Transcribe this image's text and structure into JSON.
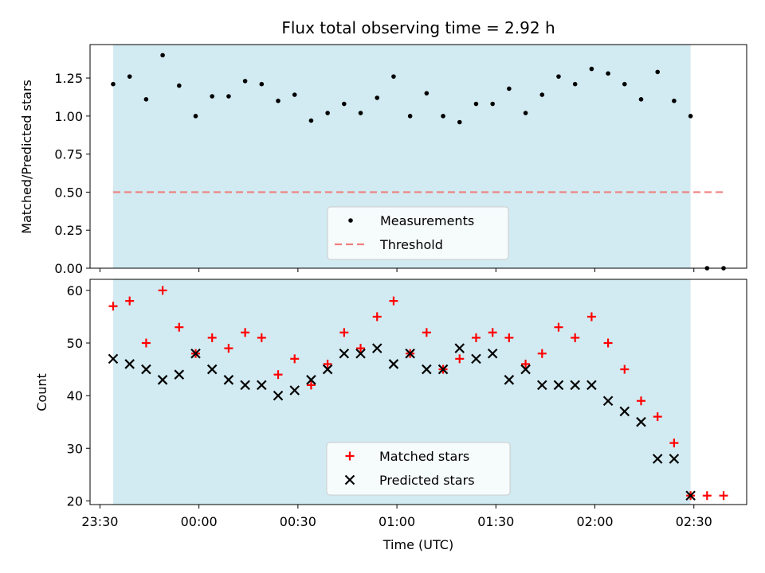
{
  "title": "Flux total observing time = 2.92 h",
  "colors": {
    "observing_span": "#add8e6",
    "measurement": "#000000",
    "threshold": "#f08080",
    "matched": "#ff0000",
    "predicted": "#000000"
  },
  "chart_data": [
    {
      "type": "scatter",
      "ylabel": "Matched/Predicted stars",
      "xlabel": "",
      "xlim": [
        "23:27",
        "02:46"
      ],
      "ylim": [
        0,
        1.47
      ],
      "yticks": [
        "0.00",
        "0.25",
        "0.50",
        "0.75",
        "1.00",
        "1.25"
      ],
      "shaded_span": [
        "23:34",
        "02:29"
      ],
      "threshold": {
        "name": "Threshold",
        "value": 0.5,
        "x": [
          "23:34",
          "02:39"
        ]
      },
      "series": [
        {
          "name": "Measurements",
          "x": [
            "23:34",
            "23:39",
            "23:44",
            "23:49",
            "23:54",
            "23:59",
            "00:04",
            "00:09",
            "00:14",
            "00:19",
            "00:24",
            "00:29",
            "00:34",
            "00:39",
            "00:44",
            "00:49",
            "00:54",
            "00:59",
            "01:04",
            "01:09",
            "01:14",
            "01:19",
            "01:24",
            "01:29",
            "01:34",
            "01:39",
            "01:44",
            "01:49",
            "01:54",
            "01:59",
            "02:04",
            "02:09",
            "02:14",
            "02:19",
            "02:24",
            "02:29",
            "02:34",
            "02:39"
          ],
          "y": [
            1.21,
            1.26,
            1.11,
            1.4,
            1.2,
            1.0,
            1.13,
            1.13,
            1.23,
            1.21,
            1.1,
            1.14,
            0.97,
            1.02,
            1.08,
            1.02,
            1.12,
            1.26,
            1.0,
            1.15,
            1.0,
            0.96,
            1.08,
            1.08,
            1.18,
            1.02,
            1.14,
            1.26,
            1.21,
            1.31,
            1.28,
            1.21,
            1.11,
            1.29,
            1.1,
            1.0,
            0.0,
            0.0
          ]
        }
      ],
      "legend": "lower-center"
    },
    {
      "type": "scatter",
      "ylabel": "Count",
      "xlabel": "Time (UTC)",
      "xlim": [
        "23:27",
        "02:46"
      ],
      "ylim": [
        19.3,
        62.1
      ],
      "yticks": [
        "20",
        "30",
        "40",
        "50",
        "60"
      ],
      "xticks": [
        "23:30",
        "00:00",
        "00:30",
        "01:00",
        "01:30",
        "02:00",
        "02:30"
      ],
      "shaded_span": [
        "23:34",
        "02:29"
      ],
      "series": [
        {
          "name": "Matched stars",
          "x": [
            "23:34",
            "23:39",
            "23:44",
            "23:49",
            "23:54",
            "23:59",
            "00:04",
            "00:09",
            "00:14",
            "00:19",
            "00:24",
            "00:29",
            "00:34",
            "00:39",
            "00:44",
            "00:49",
            "00:54",
            "00:59",
            "01:04",
            "01:09",
            "01:14",
            "01:19",
            "01:24",
            "01:29",
            "01:34",
            "01:39",
            "01:44",
            "01:49",
            "01:54",
            "01:59",
            "02:04",
            "02:09",
            "02:14",
            "02:19",
            "02:24",
            "02:29",
            "02:34",
            "02:39"
          ],
          "y": [
            57,
            58,
            50,
            60,
            53,
            48,
            51,
            49,
            52,
            51,
            44,
            47,
            42,
            46,
            52,
            49,
            55,
            58,
            48,
            52,
            45,
            47,
            51,
            52,
            51,
            46,
            48,
            53,
            51,
            55,
            50,
            45,
            39,
            36,
            31,
            21,
            21,
            21
          ]
        },
        {
          "name": "Predicted stars",
          "x": [
            "23:34",
            "23:39",
            "23:44",
            "23:49",
            "23:54",
            "23:59",
            "00:04",
            "00:09",
            "00:14",
            "00:19",
            "00:24",
            "00:29",
            "00:34",
            "00:39",
            "00:44",
            "00:49",
            "00:54",
            "00:59",
            "01:04",
            "01:09",
            "01:14",
            "01:19",
            "01:24",
            "01:29",
            "01:34",
            "01:39",
            "01:44",
            "01:49",
            "01:54",
            "01:59",
            "02:04",
            "02:09",
            "02:14",
            "02:19",
            "02:24",
            "02:29"
          ],
          "y": [
            47,
            46,
            45,
            43,
            44,
            48,
            45,
            43,
            42,
            42,
            40,
            41,
            43,
            45,
            48,
            48,
            49,
            46,
            48,
            45,
            45,
            49,
            47,
            48,
            43,
            45,
            42,
            42,
            42,
            42,
            39,
            37,
            35,
            28,
            28,
            21
          ]
        }
      ],
      "legend": "lower-center"
    }
  ]
}
